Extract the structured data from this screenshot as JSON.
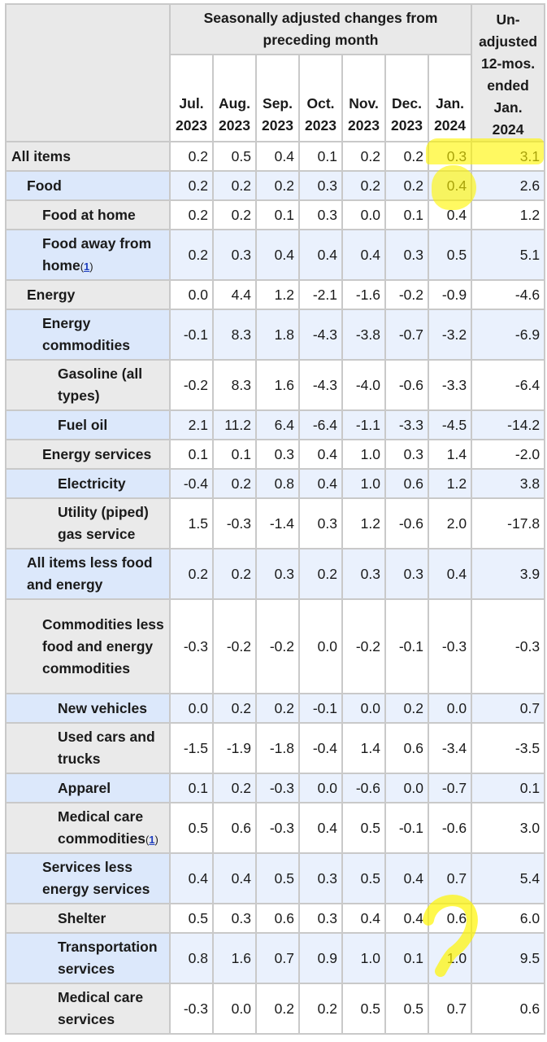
{
  "header": {
    "group_title": "Seasonally adjusted changes from preceding month",
    "unadjusted_title": [
      "Un-",
      "adjusted",
      "12-mos.",
      "ended",
      "Jan.",
      "2024"
    ],
    "months": [
      {
        "month": "Jul.",
        "year": "2023"
      },
      {
        "month": "Aug.",
        "year": "2023"
      },
      {
        "month": "Sep.",
        "year": "2023"
      },
      {
        "month": "Oct.",
        "year": "2023"
      },
      {
        "month": "Nov.",
        "year": "2023"
      },
      {
        "month": "Dec.",
        "year": "2023"
      },
      {
        "month": "Jan.",
        "year": "2024"
      }
    ]
  },
  "rows": [
    {
      "label": "All items",
      "indent": 0,
      "values": [
        "0.2",
        "0.5",
        "0.4",
        "0.1",
        "0.2",
        "0.2",
        "0.3",
        "3.1"
      ]
    },
    {
      "label": "Food",
      "indent": 1,
      "values": [
        "0.2",
        "0.2",
        "0.2",
        "0.3",
        "0.2",
        "0.2",
        "0.4",
        "2.6"
      ]
    },
    {
      "label": "Food at home",
      "indent": 2,
      "values": [
        "0.2",
        "0.2",
        "0.1",
        "0.3",
        "0.0",
        "0.1",
        "0.4",
        "1.2"
      ]
    },
    {
      "label": "Food away from home",
      "footnote": "1",
      "indent": 2,
      "values": [
        "0.2",
        "0.3",
        "0.4",
        "0.4",
        "0.4",
        "0.3",
        "0.5",
        "5.1"
      ]
    },
    {
      "label": "Energy",
      "indent": 1,
      "values": [
        "0.0",
        "4.4",
        "1.2",
        "-2.1",
        "-1.6",
        "-0.2",
        "-0.9",
        "-4.6"
      ]
    },
    {
      "label": "Energy commodities",
      "indent": 2,
      "values": [
        "-0.1",
        "8.3",
        "1.8",
        "-4.3",
        "-3.8",
        "-0.7",
        "-3.2",
        "-6.9"
      ]
    },
    {
      "label": "Gasoline (all types)",
      "indent": 3,
      "values": [
        "-0.2",
        "8.3",
        "1.6",
        "-4.3",
        "-4.0",
        "-0.6",
        "-3.3",
        "-6.4"
      ]
    },
    {
      "label": "Fuel oil",
      "indent": 3,
      "values": [
        "2.1",
        "11.2",
        "6.4",
        "-6.4",
        "-1.1",
        "-3.3",
        "-4.5",
        "-14.2"
      ]
    },
    {
      "label": "Energy services",
      "indent": 2,
      "values": [
        "0.1",
        "0.1",
        "0.3",
        "0.4",
        "1.0",
        "0.3",
        "1.4",
        "-2.0"
      ]
    },
    {
      "label": "Electricity",
      "indent": 3,
      "values": [
        "-0.4",
        "0.2",
        "0.8",
        "0.4",
        "1.0",
        "0.6",
        "1.2",
        "3.8"
      ]
    },
    {
      "label": "Utility (piped) gas service",
      "indent": 3,
      "values": [
        "1.5",
        "-0.3",
        "-1.4",
        "0.3",
        "1.2",
        "-0.6",
        "2.0",
        "-17.8"
      ]
    },
    {
      "label": "All items less food and energy",
      "indent": 1,
      "values": [
        "0.2",
        "0.2",
        "0.3",
        "0.2",
        "0.3",
        "0.3",
        "0.4",
        "3.9"
      ]
    },
    {
      "label": "Commodities less food and energy commodities",
      "indent": 2,
      "values": [
        "-0.3",
        "-0.2",
        "-0.2",
        "0.0",
        "-0.2",
        "-0.1",
        "-0.3",
        "-0.3"
      ]
    },
    {
      "label": "New vehicles",
      "indent": 3,
      "values": [
        "0.0",
        "0.2",
        "0.2",
        "-0.1",
        "0.0",
        "0.2",
        "0.0",
        "0.7"
      ]
    },
    {
      "label": "Used cars and trucks",
      "indent": 3,
      "values": [
        "-1.5",
        "-1.9",
        "-1.8",
        "-0.4",
        "1.4",
        "0.6",
        "-3.4",
        "-3.5"
      ]
    },
    {
      "label": "Apparel",
      "indent": 3,
      "values": [
        "0.1",
        "0.2",
        "-0.3",
        "0.0",
        "-0.6",
        "0.0",
        "-0.7",
        "0.1"
      ]
    },
    {
      "label": "Medical care commodities",
      "footnote": "1",
      "indent": 3,
      "values": [
        "0.5",
        "0.6",
        "-0.3",
        "0.4",
        "0.5",
        "-0.1",
        "-0.6",
        "3.0"
      ]
    },
    {
      "label": "Services less energy services",
      "indent": 2,
      "values": [
        "0.4",
        "0.4",
        "0.5",
        "0.3",
        "0.5",
        "0.4",
        "0.7",
        "5.4"
      ]
    },
    {
      "label": "Shelter",
      "indent": 3,
      "values": [
        "0.5",
        "0.3",
        "0.6",
        "0.3",
        "0.4",
        "0.4",
        "0.6",
        "6.0"
      ]
    },
    {
      "label": "Transportation services",
      "indent": 3,
      "values": [
        "0.8",
        "1.6",
        "0.7",
        "0.9",
        "1.0",
        "0.1",
        "1.0",
        "9.5"
      ]
    },
    {
      "label": "Medical care services",
      "indent": 3,
      "values": [
        "-0.3",
        "0.0",
        "0.2",
        "0.2",
        "0.5",
        "0.5",
        "0.7",
        "0.6"
      ]
    }
  ],
  "highlight_color": "#fff200"
}
